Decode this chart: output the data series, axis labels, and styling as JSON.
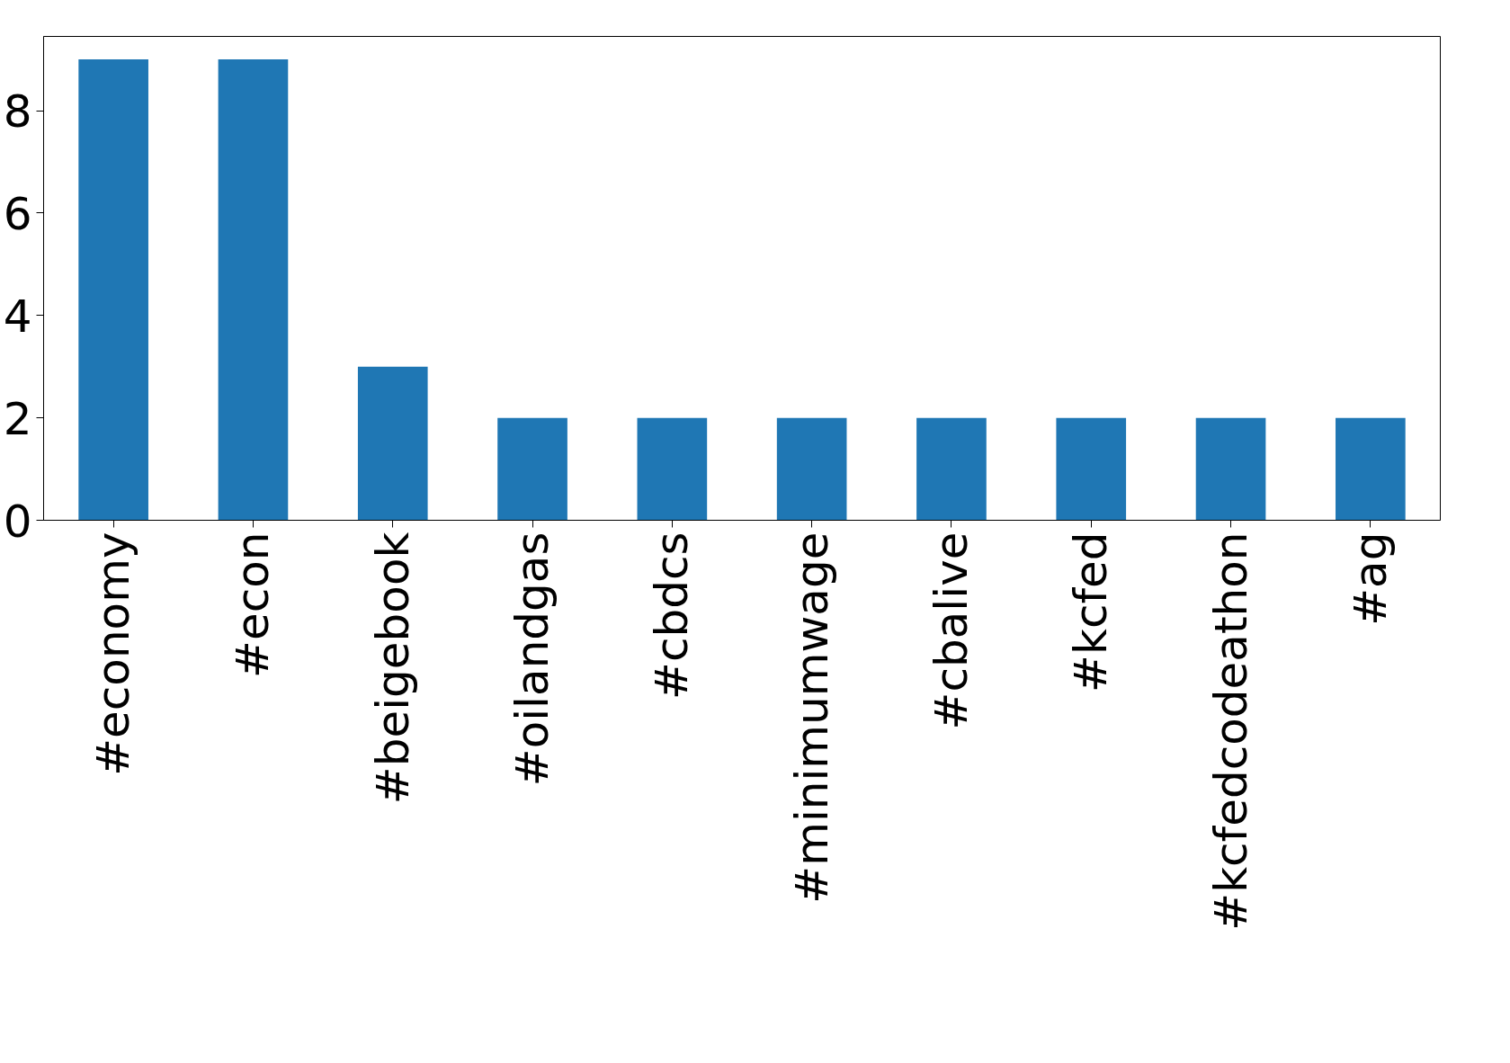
{
  "chart_data": {
    "type": "bar",
    "categories": [
      "#economy",
      "#econ",
      "#beigebook",
      "#oilandgas",
      "#cbdcs",
      "#minimumwage",
      "#cbalive",
      "#kcfed",
      "#kcfedcodeathon",
      "#ag"
    ],
    "values": [
      9,
      9,
      3,
      2,
      2,
      2,
      2,
      2,
      2,
      2
    ],
    "color": "#1f77b4",
    "ylim": [
      0,
      9.45
    ],
    "yticks": [
      0,
      2,
      4,
      6,
      8
    ]
  }
}
